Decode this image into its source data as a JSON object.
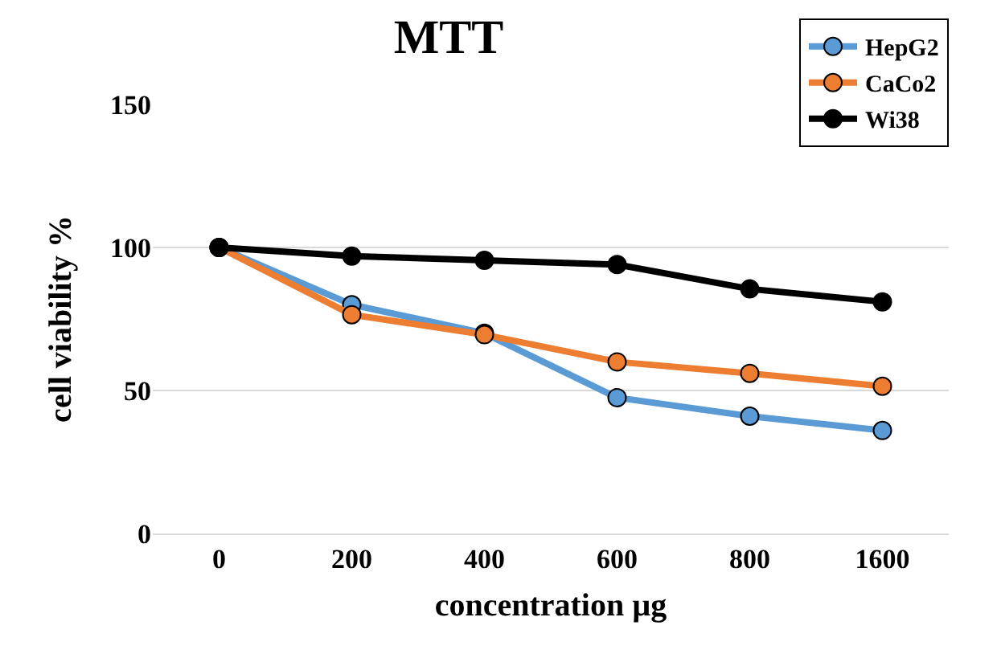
{
  "chart_data": {
    "type": "line",
    "title": "MTT",
    "xlabel": "concentration µg",
    "ylabel": "cell viability %",
    "categories": [
      "0",
      "200",
      "400",
      "600",
      "800",
      "1600"
    ],
    "series": [
      {
        "name": "HepG2",
        "color": "#5b9bd5",
        "values": [
          100,
          80,
          70,
          47.5,
          41,
          36
        ]
      },
      {
        "name": "CaCo2",
        "color": "#ed7d31",
        "values": [
          100,
          76.5,
          69.5,
          60,
          56,
          51.5
        ]
      },
      {
        "name": "Wi38",
        "color": "#000000",
        "values": [
          100,
          97,
          95.5,
          94,
          85.5,
          81
        ]
      }
    ],
    "ylim": [
      0,
      150
    ],
    "yticks": [
      0,
      50,
      100,
      150
    ],
    "grid": "y",
    "legend": "top right",
    "marker": "circle",
    "line_style": "solid"
  }
}
